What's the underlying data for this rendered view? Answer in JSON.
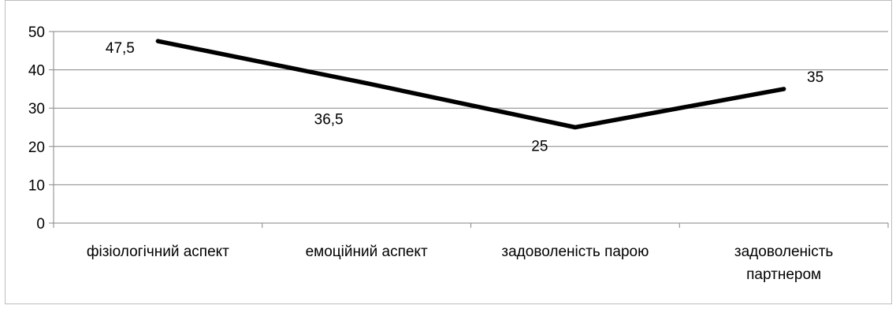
{
  "chart_data": {
    "type": "line",
    "categories": [
      "фізіологічний аспект",
      "емоційний аспект",
      "задоволеність парою",
      "задоволеність партнером"
    ],
    "category_lines": [
      [
        "фізіологічний аспект"
      ],
      [
        "емоційний аспект"
      ],
      [
        "задоволеність парою"
      ],
      [
        "задоволеність",
        "партнером"
      ]
    ],
    "values": [
      47.5,
      36.5,
      25,
      35
    ],
    "data_labels": [
      "47,5",
      "36,5",
      "25",
      "35"
    ],
    "y_ticks": [
      "0",
      "10",
      "20",
      "30",
      "40",
      "50"
    ],
    "ylim": [
      0,
      50
    ],
    "grid": true,
    "legend": "none",
    "line_color": "#000000",
    "grid_color": "#868686",
    "axis_color": "#868686"
  }
}
